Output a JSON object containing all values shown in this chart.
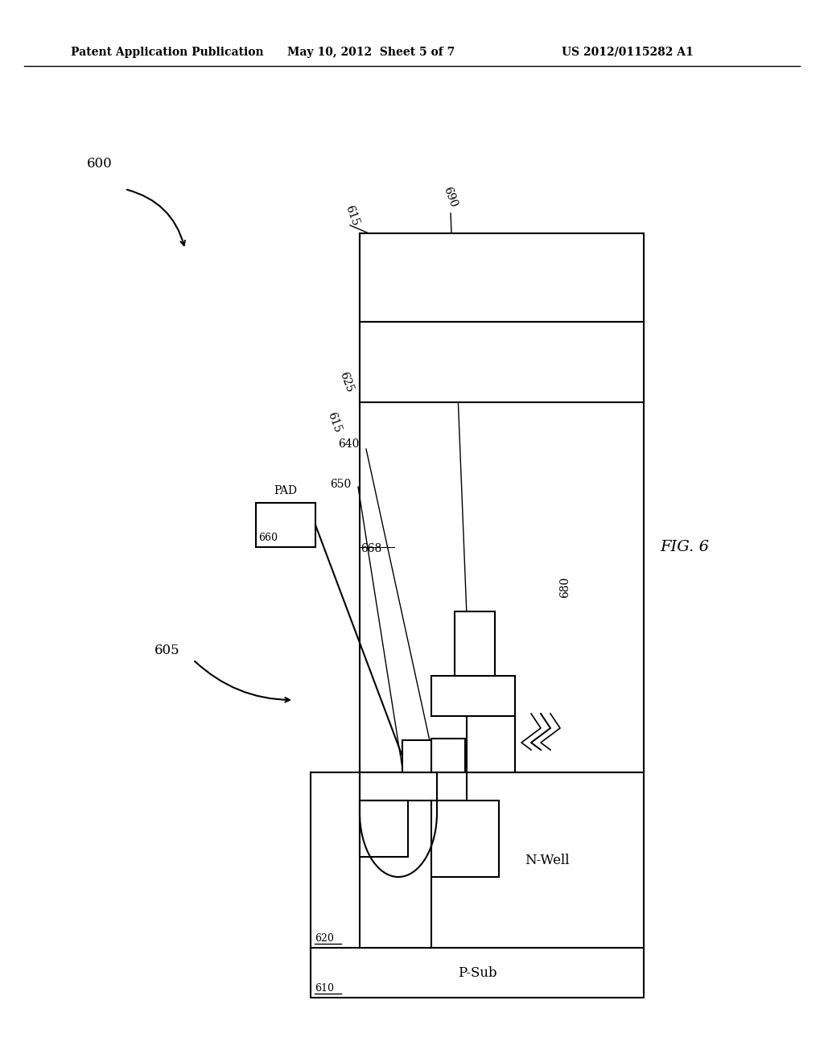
{
  "bg_color": "#ffffff",
  "header_left": "Patent Application Publication",
  "header_mid": "May 10, 2012  Sheet 5 of 7",
  "header_right": "US 2012/0115282 A1",
  "fig_label": "FIG. 6",
  "header_font": 10
}
